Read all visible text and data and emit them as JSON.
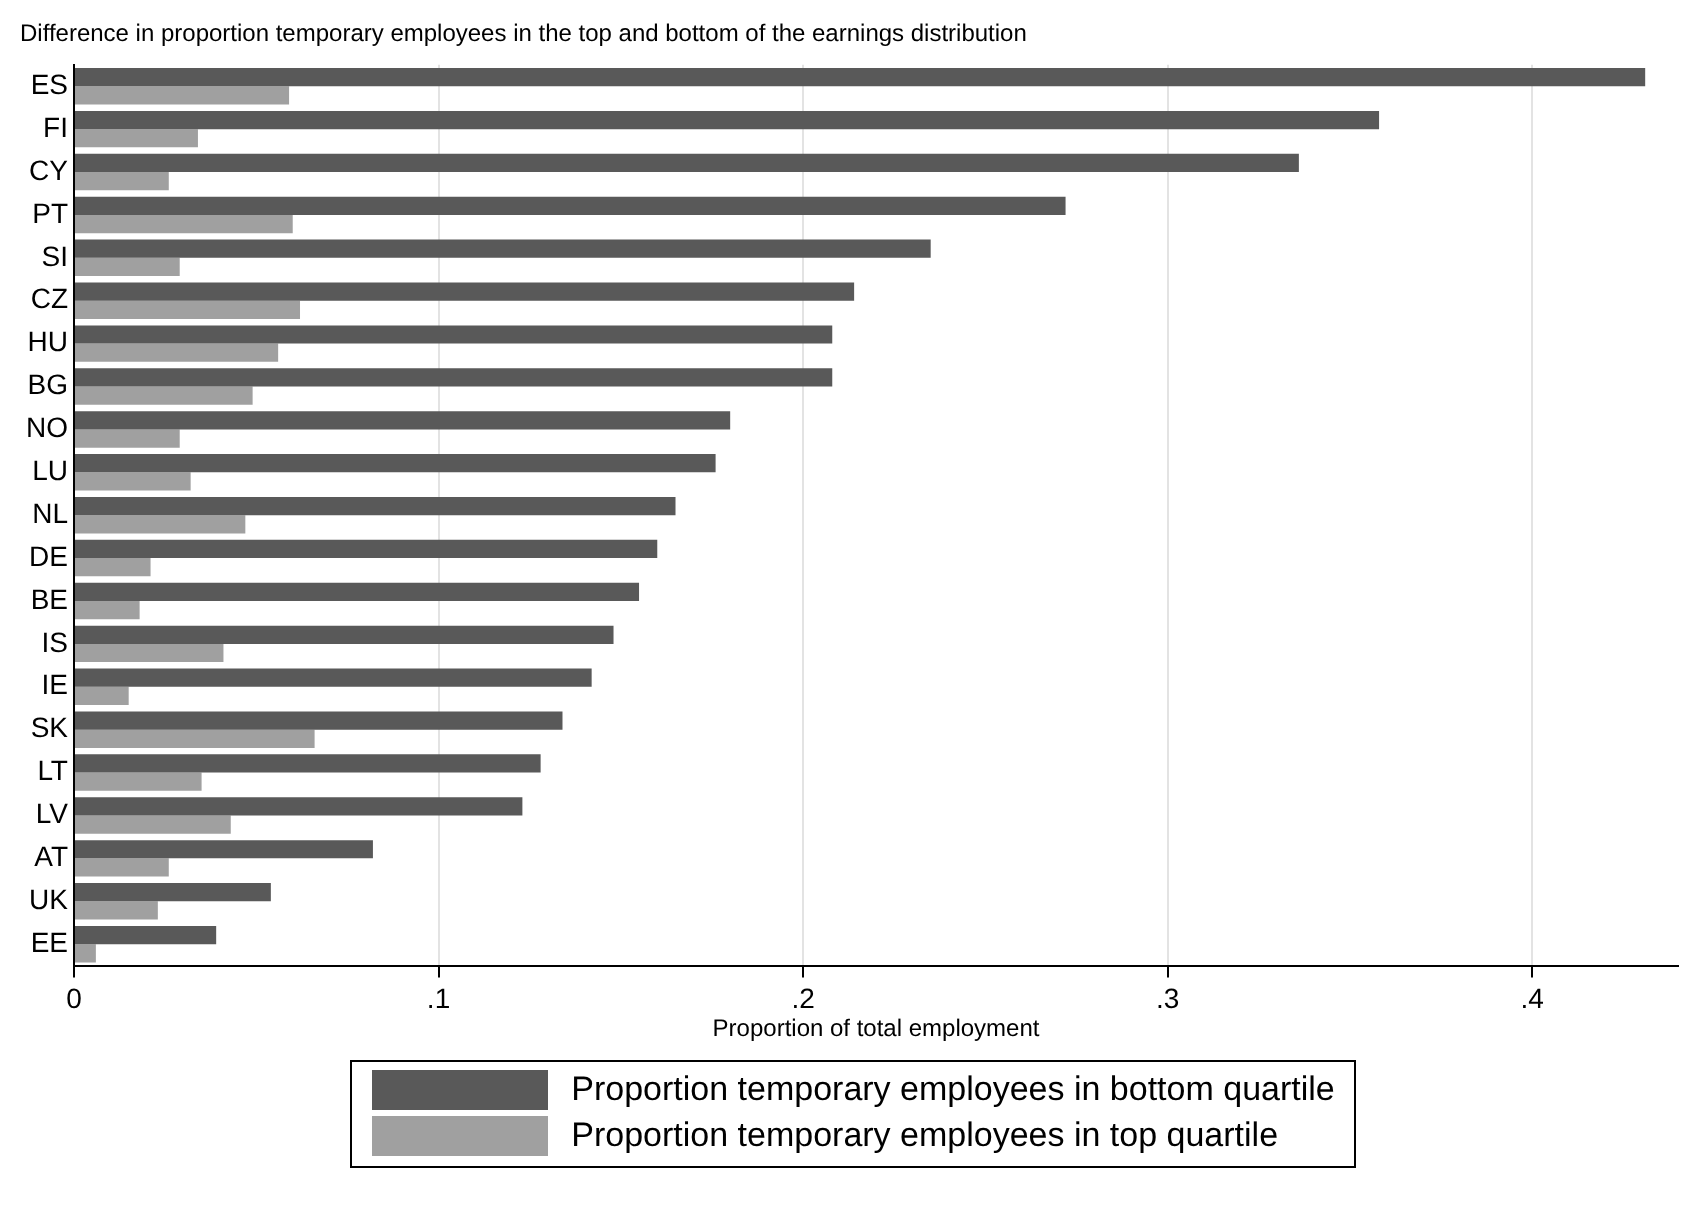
{
  "chart_data": {
    "type": "bar",
    "orientation": "horizontal",
    "title": "Difference in proportion temporary employees in the top and bottom of the earnings distribution",
    "xlabel": "Proportion of total employment",
    "categories": [
      "ES",
      "FI",
      "CY",
      "PT",
      "SI",
      "CZ",
      "HU",
      "BG",
      "NO",
      "LU",
      "NL",
      "DE",
      "BE",
      "IS",
      "IE",
      "SK",
      "LT",
      "LV",
      "AT",
      "UK",
      "EE"
    ],
    "series": [
      {
        "name": "Proportion temporary employees in bottom quartile",
        "color": "#595959",
        "values": [
          0.431,
          0.358,
          0.336,
          0.272,
          0.235,
          0.214,
          0.208,
          0.208,
          0.18,
          0.176,
          0.165,
          0.16,
          0.155,
          0.148,
          0.142,
          0.134,
          0.128,
          0.123,
          0.082,
          0.054,
          0.039
        ]
      },
      {
        "name": "Proportion temporary employees in top quartile",
        "color": "#a0a0a0",
        "values": [
          0.059,
          0.034,
          0.026,
          0.06,
          0.029,
          0.062,
          0.056,
          0.049,
          0.029,
          0.032,
          0.047,
          0.021,
          0.018,
          0.041,
          0.015,
          0.066,
          0.035,
          0.043,
          0.026,
          0.023,
          0.006
        ]
      }
    ],
    "xlim": [
      0,
      0.44
    ],
    "xticks": [
      0,
      {
        "value": 0.1,
        "label": ".1"
      },
      {
        "value": 0.2,
        "label": ".2"
      },
      {
        "value": 0.3,
        "label": ".3"
      },
      {
        "value": 0.4,
        "label": ".4"
      }
    ],
    "grid": "x",
    "legend": "bottom"
  }
}
